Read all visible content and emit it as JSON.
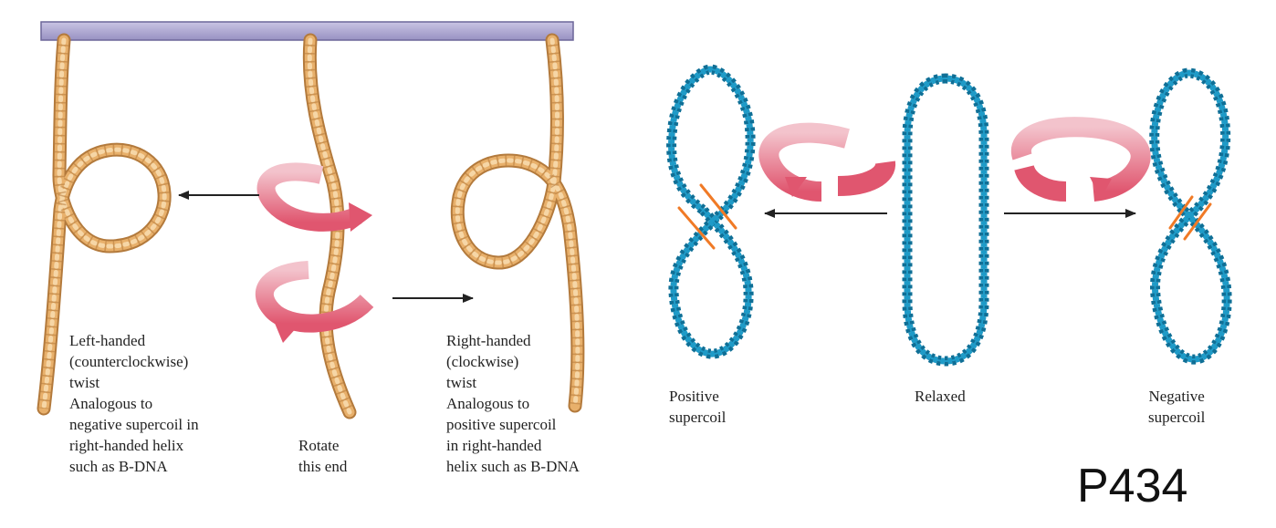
{
  "colors": {
    "bar": "#a9a3cc",
    "bar_edge": "#6c6699",
    "rope": "#e8b06b",
    "rope_dark": "#b37a3c",
    "rope_light": "#f6d6a6",
    "dna": "#1e9bc8",
    "dna_dark": "#0f6f96",
    "arrow_red": "#e0566f",
    "arrow_pink": "#f1b7c1",
    "arrow_black": "#222222",
    "crossing_mark": "#f07a26"
  },
  "icons": {
    "rotation": "curved-rotation-arrow-icon",
    "direction": "straight-arrow-icon"
  },
  "labels": {
    "left_twist": "Left-handed\n(counterclockwise)\ntwist\nAnalogous to\nnegative supercoil in\nright-handed helix\nsuch as B-DNA",
    "rotate_end": "Rotate\nthis end",
    "right_twist": "Right-handed\n(clockwise)\ntwist\nAnalogous to\npositive supercoil\nin right-handed\nhelix such as B-DNA",
    "positive_supercoil": "Positive\nsupercoil",
    "relaxed": "Relaxed",
    "negative_supercoil": "Negative\nsupercoil"
  },
  "page_number": "P434"
}
